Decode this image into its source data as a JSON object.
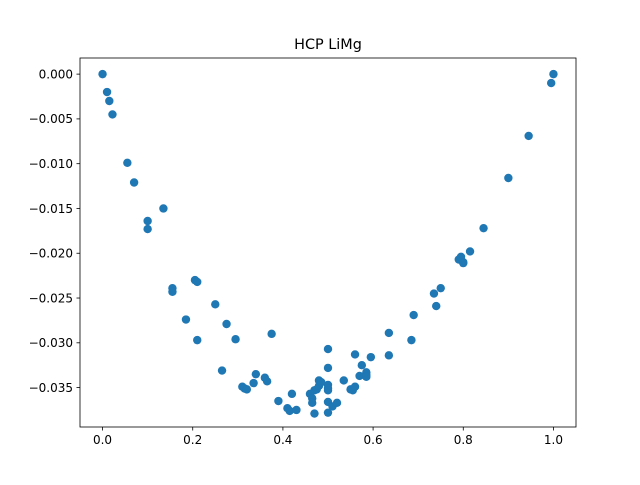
{
  "chart_data": {
    "type": "scatter",
    "title": "HCP LiMg",
    "xlabel": "",
    "ylabel": "",
    "xlim": [
      -0.05,
      1.05
    ],
    "ylim": [
      -0.0394,
      0.0018
    ],
    "xticks": [
      0.0,
      0.2,
      0.4,
      0.6,
      0.8,
      1.0
    ],
    "xtick_labels": [
      "0.0",
      "0.2",
      "0.4",
      "0.6",
      "0.8",
      "1.0"
    ],
    "yticks": [
      0.0,
      -0.005,
      -0.01,
      -0.015,
      -0.02,
      -0.025,
      -0.03,
      -0.035
    ],
    "ytick_labels": [
      "0.000",
      "−0.005",
      "−0.010",
      "−0.015",
      "−0.020",
      "−0.025",
      "−0.030",
      "−0.035"
    ],
    "grid": false,
    "marker_color": "#1f77b4",
    "series": [
      {
        "x": [
          0.0,
          0.01,
          0.015,
          0.022,
          0.055,
          0.07,
          0.1,
          0.1,
          0.135,
          0.155,
          0.155,
          0.185,
          0.205,
          0.21,
          0.21,
          0.25,
          0.265,
          0.275,
          0.295,
          0.31,
          0.315,
          0.32,
          0.335,
          0.34,
          0.36,
          0.365,
          0.375,
          0.39,
          0.41,
          0.415,
          0.42,
          0.43,
          0.46,
          0.465,
          0.465,
          0.47,
          0.47,
          0.475,
          0.48,
          0.48,
          0.485,
          0.5,
          0.5,
          0.5,
          0.5,
          0.5,
          0.5,
          0.5,
          0.51,
          0.52,
          0.535,
          0.55,
          0.555,
          0.56,
          0.56,
          0.57,
          0.575,
          0.585,
          0.585,
          0.585,
          0.595,
          0.635,
          0.635,
          0.685,
          0.69,
          0.735,
          0.74,
          0.75,
          0.79,
          0.795,
          0.8,
          0.8,
          0.815,
          0.845,
          0.9,
          0.945,
          0.995,
          1.0
        ],
        "y": [
          0.0,
          -0.002,
          -0.003,
          -0.0045,
          -0.0099,
          -0.0121,
          -0.0164,
          -0.0173,
          -0.015,
          -0.0239,
          -0.0243,
          -0.0274,
          -0.023,
          -0.0232,
          -0.0297,
          -0.0257,
          -0.0331,
          -0.0279,
          -0.0296,
          -0.0349,
          -0.0351,
          -0.0352,
          -0.0345,
          -0.0335,
          -0.0339,
          -0.0343,
          -0.029,
          -0.0365,
          -0.0373,
          -0.0376,
          -0.0357,
          -0.0375,
          -0.0357,
          -0.0362,
          -0.0367,
          -0.0353,
          -0.0379,
          -0.0352,
          -0.0342,
          -0.0348,
          -0.0344,
          -0.0307,
          -0.0328,
          -0.0347,
          -0.0351,
          -0.0353,
          -0.0366,
          -0.0378,
          -0.0371,
          -0.0367,
          -0.0342,
          -0.0352,
          -0.0353,
          -0.0349,
          -0.0313,
          -0.0337,
          -0.0325,
          -0.0333,
          -0.0336,
          -0.0338,
          -0.0316,
          -0.0289,
          -0.0314,
          -0.0297,
          -0.0269,
          -0.0245,
          -0.0259,
          -0.0239,
          -0.0207,
          -0.0204,
          -0.021,
          -0.0211,
          -0.0198,
          -0.0172,
          -0.0116,
          -0.0069,
          -0.001,
          0.0
        ]
      }
    ]
  }
}
